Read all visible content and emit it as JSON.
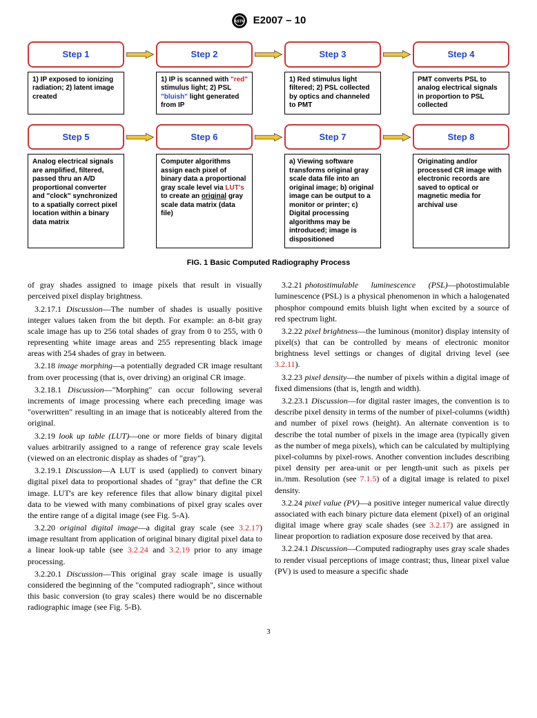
{
  "header": {
    "designation": "E2007 – 10"
  },
  "diagram": {
    "steps": [
      {
        "label": "Step 1",
        "desc_html": "1) IP exposed to ionizing radiation; 2) latent image created"
      },
      {
        "label": "Step 2",
        "desc_html": "1) IP is scanned with <span class='red'>\"red\"</span> stimulus light; 2) PSL <span class='blue'>\"bluish\"</span> light generated from IP"
      },
      {
        "label": "Step 3",
        "desc_html": "1) Red stimulus light filtered; 2) PSL collected by optics and channeled to PMT"
      },
      {
        "label": "Step 4",
        "desc_html": "PMT converts PSL to analog electrical signals in proportion to PSL collected"
      },
      {
        "label": "Step 5",
        "desc_html": "Analog electrical signals are amplified, filtered, passed thru an A/D proportional converter and \"clock\" synchronized to a spatially correct pixel location within a binary data matrix"
      },
      {
        "label": "Step 6",
        "desc_html": "Computer algorithms assign each pixel of binary data a proportional gray scale level via <span class='red'>LUT's</span> to create an <u>original</u> gray scale data matrix (data file)"
      },
      {
        "label": "Step 7",
        "desc_html": "a) Viewing software transforms original gray scale data file into an original image; b) original image can be output to a monitor or printer; c) Digital processing algorithms may be introduced; image is dispositioned"
      },
      {
        "label": "Step 8",
        "desc_html": "Originating and/or processed CR image with electronic records are saved to optical or magnetic media for archival use"
      }
    ],
    "arrow_fill": "#f5c431",
    "arrow_stroke": "#333333",
    "step_border": "#cc3333",
    "step_text_color": "#2244cc",
    "caption": "FIG. 1 Basic Computed Radiography Process"
  },
  "body": {
    "paragraphs": [
      {
        "cont": true,
        "html": "of gray shades assigned to image pixels that result in visually perceived pixel display brightness."
      },
      {
        "html": "3.2.17.1 <span class='term'>Discussion</span>—The number of shades is usually positive integer values taken from the bit depth. For example: an 8-bit gray scale image has up to 256 total shades of gray from 0 to 255, with 0 representing white image areas and 255 representing black image areas with 254 shades of gray in between."
      },
      {
        "html": "3.2.18 <span class='term'>image morphing</span>—a potentially degraded CR image resultant from over processing (that is, over driving) an original CR image."
      },
      {
        "html": "3.2.18.1 <span class='term'>Discussion</span>—\"Morphing\" can occur following several increments of image processing where each preceding image was \"overwritten\" resulting in an image that is noticeably altered from the original."
      },
      {
        "html": "3.2.19 <span class='term'>look up table (LUT)</span>—one or more fields of binary digital values arbitrarily assigned to a range of reference gray scale levels (viewed on an electronic display as shades of \"gray\")."
      },
      {
        "html": "3.2.19.1 <span class='term'>Discussion</span>—A LUT is used (applied) to convert binary digital pixel data to proportional shades of \"gray\" that define the CR image. LUT's are key reference files that allow binary digital pixel data to be viewed with many combinations of pixel gray scales over the entire range of a digital image (see Fig. 5-A)."
      },
      {
        "html": "3.2.20 <span class='term'>original digital image</span>—a digital gray scale (see <span class='xref'>3.2.17</span>) image resultant from application of original binary digital pixel data to a linear look-up table (see <span class='xref'>3.2.24</span> and <span class='xref'>3.2.19</span> prior to any image processing."
      },
      {
        "html": "3.2.20.1 <span class='term'>Discussion</span>—This original gray scale image is usually considered the beginning of the \"computed radiograph\", since without this basic conversion (to gray scales) there would be no discernable radiographic image (see Fig. 5-B)."
      },
      {
        "html": "3.2.21 <span class='term'>photostimulable &nbsp;&nbsp;&nbsp; luminescence &nbsp;&nbsp;&nbsp; (PSL)</span>—photostimulable luminescence (PSL) is a physical phenomenon in which a halogenated phosphor compound emits bluish light when excited by a source of red spectrum light."
      },
      {
        "html": "3.2.22 <span class='term'>pixel brightness</span>—the luminous (monitor) display intensity of pixel(s) that can be controlled by means of electronic monitor brightness level settings or changes of digital driving level (see <span class='xref'>3.2.11</span>)."
      },
      {
        "html": "3.2.23 <span class='term'>pixel density</span>—the number of pixels within a digital image of fixed dimensions (that is, length and width)."
      },
      {
        "html": "3.2.23.1 <span class='term'>Discussion</span>—for digital raster images, the convention is to describe pixel density in terms of the number of pixel-columns (width) and number of pixel rows (height). An alternate convention is to describe the total number of pixels in the image area (typically given as the number of mega pixels), which can be calculated by multiplying pixel-columns by pixel-rows. Another convention includes describing pixel density per area-unit or per length-unit such as pixels per in./mm. Resolution (see <span class='xref'>7.1.5</span>) of a digital image is related to pixel density."
      },
      {
        "html": "3.2.24 <span class='term'>pixel value (PV)</span>—a positive integer numerical value directly associated with each binary picture data element (pixel) of an original digital image where gray scale shades (see <span class='xref'>3.2.17</span>) are assigned in linear proportion to radiation exposure dose received by that area."
      },
      {
        "html": "3.2.24.1 <span class='term'>Discussion</span>—Computed radiography uses gray scale shades to render visual perceptions of image contrast; thus, linear pixel value (PV) is used to measure a specific shade"
      }
    ]
  },
  "pagenum": "3"
}
